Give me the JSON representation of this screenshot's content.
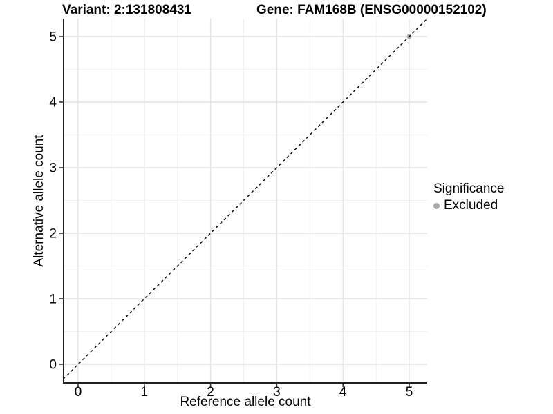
{
  "chart_data": {
    "type": "scatter",
    "title_variant": "Variant: 2:131808431",
    "title_gene": "Gene: FAM168B (ENSG00000152102)",
    "xlabel": "Reference allele count",
    "ylabel": "Alternative allele count",
    "xlim": [
      -0.22,
      5.27
    ],
    "ylim": [
      -0.28,
      5.28
    ],
    "x_ticks": [
      0,
      1,
      2,
      3,
      4,
      5
    ],
    "y_ticks": [
      0,
      1,
      2,
      3,
      4,
      5
    ],
    "minor_grid_step": 0.5,
    "grid": true,
    "identity_line": {
      "equation": "y = x",
      "style": "dashed",
      "color": "#000000"
    },
    "series": [
      {
        "name": "Excluded",
        "color": "#a9a9a9",
        "points": [
          [
            5,
            5
          ]
        ]
      }
    ],
    "legend": {
      "title": "Significance",
      "position": "right",
      "items": [
        {
          "label": "Excluded",
          "color": "#a9a9a9"
        }
      ]
    },
    "colors": {
      "grid_major": "#e4e4e4",
      "grid_minor": "#f1f1f1",
      "axis_line": "#1f1f1f",
      "tick": "#333333",
      "text": "#000000",
      "background": "#ffffff"
    }
  }
}
